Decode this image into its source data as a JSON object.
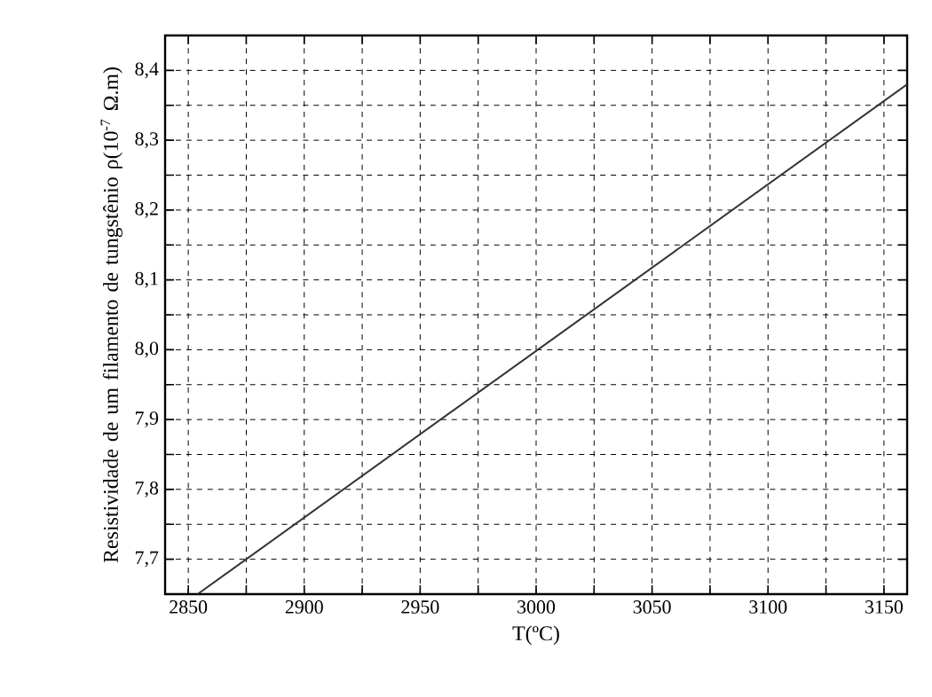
{
  "chart_data": {
    "type": "line",
    "xlabel": "T(ºC)",
    "ylabel": "Resistividade de um filamento de tungstênio ρ(10$^{-7}$ Ω.m)",
    "x": [
      2854,
      3160
    ],
    "series": [
      {
        "color": "#333333",
        "values": [
          7.65,
          8.38
        ]
      }
    ],
    "xlim": [
      2840,
      3160
    ],
    "ylim": [
      7.65,
      8.45
    ],
    "xticks": [
      2850,
      {
        "value": 2875,
        "label": null
      },
      2900,
      {
        "value": 2925,
        "label": null
      },
      2950,
      {
        "value": 2975,
        "label": null
      },
      3000,
      {
        "value": 3025,
        "label": null
      },
      3050,
      {
        "value": 3075,
        "label": null
      },
      3100,
      {
        "value": 3125,
        "label": null
      },
      3150
    ],
    "yticks": [
      {
        "value": 7.7,
        "label": "7,7"
      },
      {
        "value": 7.75,
        "label": null
      },
      {
        "value": 7.8,
        "label": "7,8"
      },
      {
        "value": 7.85,
        "label": null
      },
      {
        "value": 7.9,
        "label": "7,9"
      },
      {
        "value": 7.95,
        "label": null
      },
      {
        "value": 8.0,
        "label": "8,0"
      },
      {
        "value": 8.05,
        "label": null
      },
      {
        "value": 8.1,
        "label": "8,1"
      },
      {
        "value": 8.15,
        "label": null
      },
      {
        "value": 8.2,
        "label": "8,2"
      },
      {
        "value": 8.25,
        "label": null
      },
      {
        "value": 8.3,
        "label": "8,3"
      },
      {
        "value": 8.35,
        "label": null
      },
      {
        "value": 8.4,
        "label": "8,4"
      }
    ],
    "grid": true,
    "line_style": "solid",
    "marker": "none"
  }
}
